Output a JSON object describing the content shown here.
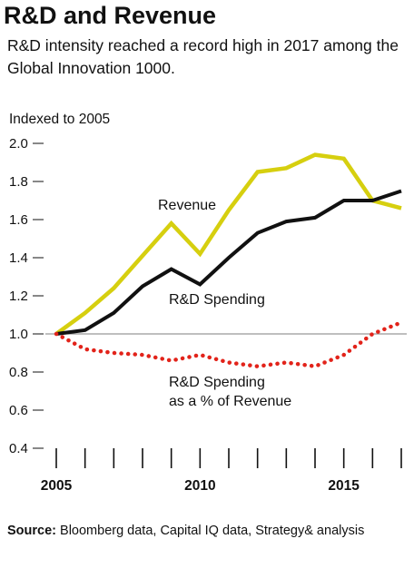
{
  "header": {
    "title": "R&D and Revenue",
    "subtitle": "R&D intensity reached a record high in 2017 among the Global Innovation 1000."
  },
  "footer": {
    "source_label": "Source:",
    "source_text": "Bloomberg data, Capital IQ data, Strategy& analysis"
  },
  "colors": {
    "revenue": "#d6cf0f",
    "rd_spending": "#111111",
    "rd_pct": "#e2231a",
    "baseline": "#999999"
  },
  "chart_data": {
    "type": "line",
    "ylabel": "Indexed to 2005",
    "ylim": [
      0.4,
      2.0
    ],
    "yticks": [
      "2.0",
      "1.8",
      "1.6",
      "1.4",
      "1.2",
      "1.0",
      "0.8",
      "0.6",
      "0.4"
    ],
    "xlim": [
      2005,
      2017
    ],
    "xticks": [
      "2005",
      "2010",
      "2015"
    ],
    "x": [
      2005,
      2006,
      2007,
      2008,
      2009,
      2010,
      2011,
      2012,
      2013,
      2014,
      2015,
      2016,
      2017
    ],
    "series": [
      {
        "name": "Revenue",
        "values": [
          1.0,
          1.11,
          1.24,
          1.41,
          1.58,
          1.42,
          1.65,
          1.85,
          1.87,
          1.94,
          1.92,
          1.7,
          1.66
        ]
      },
      {
        "name": "R&D Spending",
        "values": [
          1.0,
          1.02,
          1.11,
          1.25,
          1.34,
          1.26,
          1.4,
          1.53,
          1.59,
          1.61,
          1.7,
          1.7,
          1.75
        ]
      },
      {
        "name": "R&D Spending as a % of Revenue",
        "values": [
          1.0,
          0.92,
          0.9,
          0.89,
          0.86,
          0.89,
          0.85,
          0.83,
          0.85,
          0.83,
          0.89,
          1.0,
          1.06
        ]
      }
    ],
    "annotations": {
      "revenue": "Revenue",
      "rd_spending": "R&D Spending",
      "rd_pct_line1": "R&D Spending",
      "rd_pct_line2": "as a % of Revenue"
    },
    "grid": false,
    "baseline_at": 1.0
  }
}
